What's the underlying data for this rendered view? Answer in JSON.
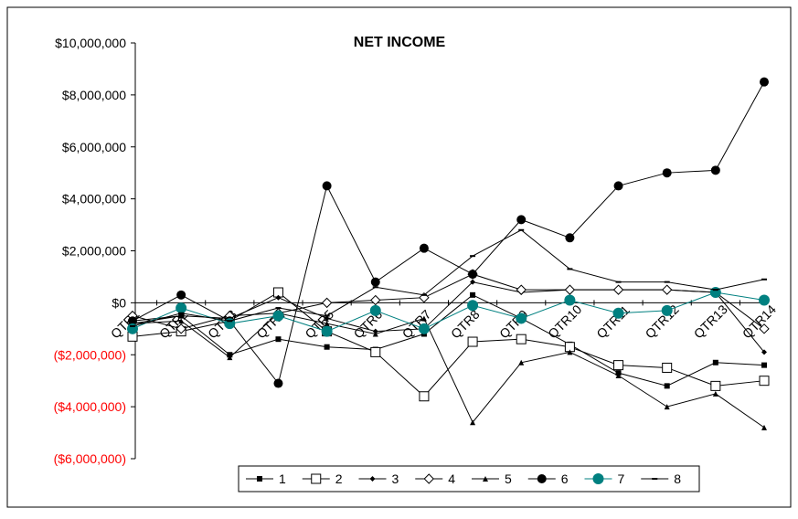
{
  "chart_data": {
    "type": "line",
    "title": "NET INCOME",
    "xlabel": "",
    "ylabel": "",
    "categories": [
      "QTR1",
      "QTR2",
      "QTR3",
      "QTR4",
      "QTR5",
      "QTR6",
      "QTR7",
      "QTR8",
      "QTR9",
      "QTR10",
      "QTR11",
      "QTR12",
      "QTR13",
      "QTR14"
    ],
    "ylim": [
      -6000000,
      10000000
    ],
    "yticks": [
      10000000,
      8000000,
      6000000,
      4000000,
      2000000,
      0,
      -2000000,
      -4000000,
      -6000000
    ],
    "ytick_labels": [
      "$10,000,000",
      "$8,000,000",
      "$6,000,000",
      "$4,000,000",
      "$2,000,000",
      "$0",
      "($2,000,000)",
      "($4,000,000)",
      "($6,000,000)"
    ],
    "negative_label_color": "#ff0000",
    "grid": false,
    "legend_position": "bottom",
    "series": [
      {
        "name": "1",
        "marker": "square-filled",
        "color": "#000000",
        "values": [
          -700000,
          -500000,
          -2000000,
          -1400000,
          -1700000,
          -1800000,
          -1200000,
          300000,
          -600000,
          -1600000,
          -2700000,
          -3200000,
          -2300000,
          -2400000
        ]
      },
      {
        "name": "2",
        "marker": "square-open",
        "color": "#000000",
        "values": [
          -1300000,
          -1100000,
          -700000,
          400000,
          -1100000,
          -1900000,
          -3600000,
          -1500000,
          -1400000,
          -1700000,
          -2400000,
          -2500000,
          -3200000,
          -3000000
        ]
      },
      {
        "name": "3",
        "marker": "diamond-small",
        "color": "#000000",
        "values": [
          -800000,
          -500000,
          -600000,
          200000,
          -600000,
          -1100000,
          -1000000,
          800000,
          400000,
          500000,
          500000,
          500000,
          400000,
          -1900000
        ]
      },
      {
        "name": "4",
        "marker": "diamond-open",
        "color": "#000000",
        "values": [
          -500000,
          -1000000,
          -500000,
          -400000,
          0,
          100000,
          200000,
          1100000,
          500000,
          500000,
          500000,
          500000,
          400000,
          -1000000
        ]
      },
      {
        "name": "5",
        "marker": "triangle-filled",
        "color": "#000000",
        "values": [
          -800000,
          -700000,
          -2100000,
          -400000,
          -800000,
          -1200000,
          -600000,
          -4600000,
          -2300000,
          -1900000,
          -2800000,
          -4000000,
          -3500000,
          -4800000
        ]
      },
      {
        "name": "6",
        "marker": "circle-filled",
        "color": "#000000",
        "values": [
          -700000,
          300000,
          -700000,
          -3100000,
          4500000,
          800000,
          2100000,
          1100000,
          3200000,
          2500000,
          4500000,
          5000000,
          5100000,
          8500000
        ]
      },
      {
        "name": "7",
        "marker": "circle-teal",
        "color": "#008080",
        "values": [
          -1000000,
          -200000,
          -800000,
          -500000,
          -1100000,
          -300000,
          -1000000,
          -100000,
          -600000,
          100000,
          -400000,
          -300000,
          400000,
          100000
        ]
      },
      {
        "name": "8",
        "marker": "dash",
        "color": "#000000",
        "values": [
          -900000,
          -400000,
          -700000,
          -200000,
          -500000,
          600000,
          300000,
          1800000,
          2800000,
          1300000,
          800000,
          800000,
          500000,
          900000
        ]
      }
    ]
  }
}
